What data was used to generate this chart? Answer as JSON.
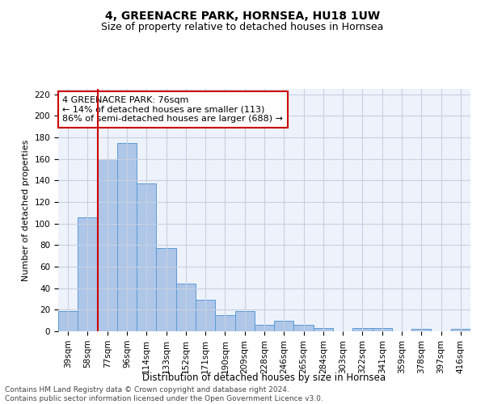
{
  "title": "4, GREENACRE PARK, HORNSEA, HU18 1UW",
  "subtitle": "Size of property relative to detached houses in Hornsea",
  "xlabel": "Distribution of detached houses by size in Hornsea",
  "ylabel": "Number of detached properties",
  "categories": [
    "39sqm",
    "58sqm",
    "77sqm",
    "96sqm",
    "114sqm",
    "133sqm",
    "152sqm",
    "171sqm",
    "190sqm",
    "209sqm",
    "228sqm",
    "246sqm",
    "265sqm",
    "284sqm",
    "303sqm",
    "322sqm",
    "341sqm",
    "359sqm",
    "378sqm",
    "397sqm",
    "416sqm"
  ],
  "values": [
    19,
    106,
    160,
    175,
    137,
    77,
    44,
    29,
    15,
    19,
    6,
    10,
    6,
    3,
    0,
    3,
    3,
    0,
    2,
    0,
    2
  ],
  "bar_color": "#aec6e8",
  "bar_edge_color": "#5b9bd5",
  "vline_color": "#cc0000",
  "annotation_text": "4 GREENACRE PARK: 76sqm\n← 14% of detached houses are smaller (113)\n86% of semi-detached houses are larger (688) →",
  "annotation_box_color": "#ffffff",
  "annotation_box_edge": "#cc0000",
  "ylim": [
    0,
    225
  ],
  "yticks": [
    0,
    20,
    40,
    60,
    80,
    100,
    120,
    140,
    160,
    180,
    200,
    220
  ],
  "grid_color": "#c8d0e0",
  "background_color": "#eef2fb",
  "footer": "Contains HM Land Registry data © Crown copyright and database right 2024.\nContains public sector information licensed under the Open Government Licence v3.0.",
  "title_fontsize": 10,
  "subtitle_fontsize": 9,
  "xlabel_fontsize": 8.5,
  "ylabel_fontsize": 8,
  "tick_fontsize": 7.5,
  "annotation_fontsize": 8,
  "footer_fontsize": 6.5
}
